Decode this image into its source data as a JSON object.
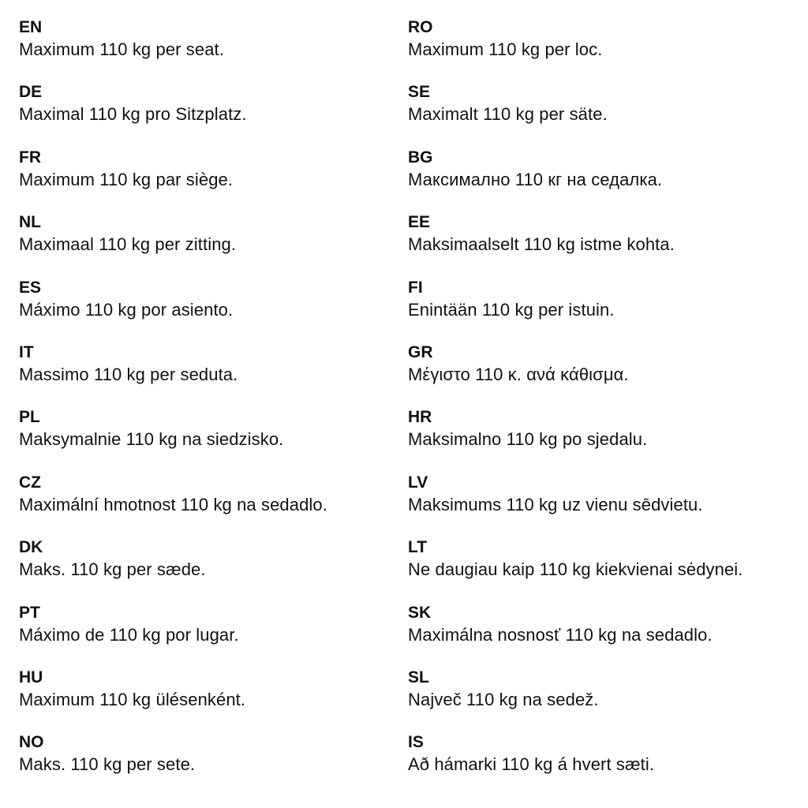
{
  "left_column": [
    {
      "code": "EN",
      "text": "Maximum 110 kg per seat."
    },
    {
      "code": "DE",
      "text": "Maximal 110 kg pro Sitzplatz."
    },
    {
      "code": "FR",
      "text": "Maximum 110 kg par siège."
    },
    {
      "code": "NL",
      "text": "Maximaal 110 kg per zitting."
    },
    {
      "code": "ES",
      "text": "Máximo 110 kg por asiento."
    },
    {
      "code": "IT",
      "text": "Massimo 110 kg per seduta."
    },
    {
      "code": "PL",
      "text": "Maksymalnie 110 kg na siedzisko."
    },
    {
      "code": "CZ",
      "text": "Maximální hmotnost 110 kg na sedadlo."
    },
    {
      "code": "DK",
      "text": "Maks. 110 kg per sæde."
    },
    {
      "code": "PT",
      "text": "Máximo de 110 kg por lugar."
    },
    {
      "code": "HU",
      "text": "Maximum 110 kg ülésenként."
    },
    {
      "code": "NO",
      "text": "Maks. 110 kg per sete."
    }
  ],
  "right_column": [
    {
      "code": "RO",
      "text": "Maximum 110 kg per loc."
    },
    {
      "code": "SE",
      "text": "Maximalt 110 kg per säte."
    },
    {
      "code": "BG",
      "text": "Максимално 110 кг на седалка."
    },
    {
      "code": "EE",
      "text": "Maksimaalselt 110 kg istme kohta."
    },
    {
      "code": "FI",
      "text": "Enintään 110 kg per istuin."
    },
    {
      "code": "GR",
      "text": "Μέγιστο 110 κ. ανά κάθισμα."
    },
    {
      "code": "HR",
      "text": "Maksimalno 110 kg po sjedalu."
    },
    {
      "code": "LV",
      "text": "Maksimums 110 kg uz vienu sēdvietu."
    },
    {
      "code": "LT",
      "text": "Ne daugiau kaip 110 kg kiekvienai sėdynei."
    },
    {
      "code": "SK",
      "text": "Maximálna nosnosť 110 kg na sedadlo."
    },
    {
      "code": "SL",
      "text": "Največ 110 kg na sedež."
    },
    {
      "code": "IS",
      "text": "Að hámarki 110 kg á hvert sæti."
    }
  ]
}
